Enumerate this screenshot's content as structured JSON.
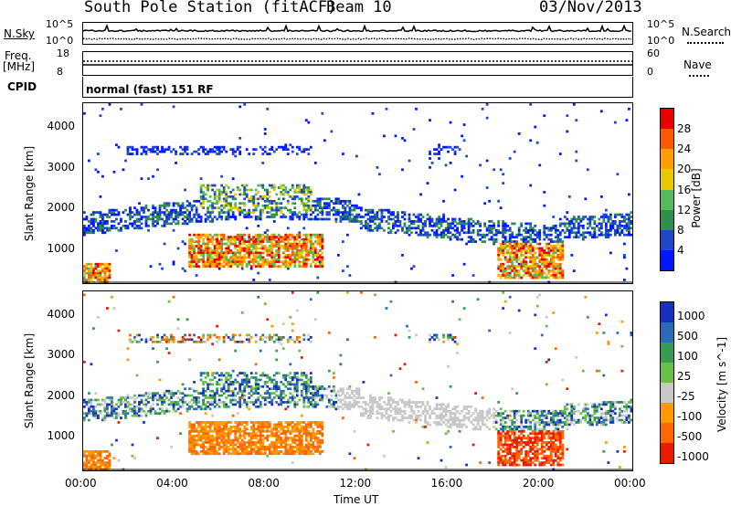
{
  "header": {
    "station": "South Pole Station (fitACF)",
    "beam": "Beam 10",
    "date": "03/Nov/2013"
  },
  "top_panels": {
    "nsky_label": "N.Sky",
    "nsky_ticks": [
      "10^5",
      "10^0"
    ],
    "nsearch_label": "N.Search",
    "nsearch_ticks": [
      "10^5",
      "10^0"
    ],
    "freq_label_1": "Freq.",
    "freq_label_2": "[MHz]",
    "freq_ticks": [
      "18",
      "8"
    ],
    "nave_label": "Nave",
    "nave_ticks": [
      "60",
      "0"
    ],
    "cpid_label": "CPID",
    "cpid_text": "normal (fast) 151 RF"
  },
  "colors": {
    "power_scale": [
      "#0018ff",
      "#1f48c8",
      "#2f8f4c",
      "#58b85c",
      "#e8c800",
      "#ffa000",
      "#ff5a00",
      "#e80000"
    ],
    "velocity_scale": [
      "#1830c0",
      "#2a6ab8",
      "#3a9a50",
      "#68c048",
      "#c8c8c8",
      "#ff9a00",
      "#ff6800",
      "#ee1a00"
    ]
  },
  "chart_data": [
    {
      "type": "heatmap",
      "title": "Power",
      "ylabel": "Slant Range [km]",
      "xlabel": "",
      "x_ticks": [
        "00:00",
        "04:00",
        "08:00",
        "12:00",
        "16:00",
        "20:00",
        "00:00"
      ],
      "y_ticks": [
        "1000",
        "2000",
        "3000",
        "4000"
      ],
      "ylim": [
        200,
        4600
      ],
      "colorbar": {
        "label": "Power [dB]",
        "ticks": [
          "4",
          "8",
          "12",
          "16",
          "20",
          "24",
          "28"
        ],
        "range": [
          0,
          32
        ]
      }
    },
    {
      "type": "heatmap",
      "title": "Velocity",
      "ylabel": "Slant Range [km]",
      "xlabel": "Time UT",
      "x_ticks": [
        "00:00",
        "04:00",
        "08:00",
        "12:00",
        "16:00",
        "20:00",
        "00:00"
      ],
      "y_ticks": [
        "1000",
        "2000",
        "3000",
        "4000"
      ],
      "ylim": [
        200,
        4600
      ],
      "colorbar": {
        "label": "Velocity [m s^-1]",
        "ticks": [
          "1000",
          "500",
          "100",
          "25",
          "-25",
          "-100",
          "-500",
          "-1000"
        ]
      }
    }
  ]
}
